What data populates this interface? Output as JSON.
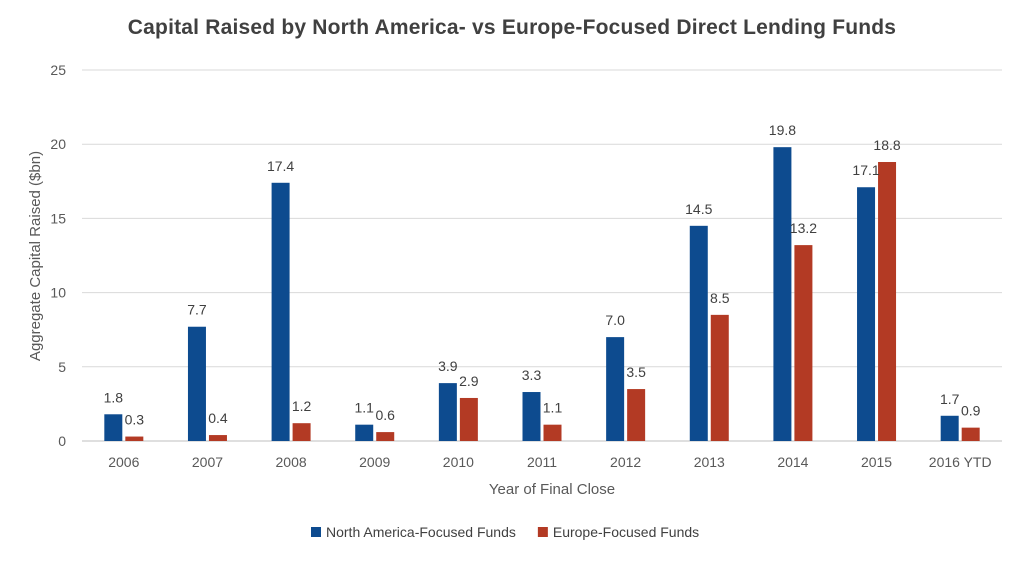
{
  "chart_data": {
    "type": "bar",
    "title": "Capital Raised by North America- vs Europe-Focused Direct Lending Funds",
    "xlabel": "Year of Final Close",
    "ylabel": "Aggregate Capital Raised ($bn)",
    "ylim": [
      0,
      25
    ],
    "yticks": [
      0,
      5,
      10,
      15,
      20,
      25
    ],
    "grid": true,
    "legend_position": "bottom",
    "categories": [
      "2006",
      "2007",
      "2008",
      "2009",
      "2010",
      "2011",
      "2012",
      "2013",
      "2014",
      "2015",
      "2016 YTD"
    ],
    "series": [
      {
        "name": "North America-Focused Funds",
        "color": "#0d4b8f",
        "values": [
          1.8,
          7.7,
          17.4,
          1.1,
          3.9,
          3.3,
          7.0,
          14.5,
          19.8,
          17.1,
          1.7
        ],
        "labels": [
          "1.8",
          "7.7",
          "17.4",
          "1.1",
          "3.9",
          "3.3",
          "7.0",
          "14.5",
          "19.8",
          "17.1",
          "1.7"
        ]
      },
      {
        "name": "Europe-Focused Funds",
        "color": "#b33a24",
        "values": [
          0.3,
          0.4,
          1.2,
          0.6,
          2.9,
          1.1,
          3.5,
          8.5,
          13.2,
          18.8,
          0.9
        ],
        "labels": [
          "0.3",
          "0.4",
          "1.2",
          "0.6",
          "2.9",
          "1.1",
          "3.5",
          "8.5",
          "13.2",
          "18.8",
          "0.9"
        ]
      }
    ]
  }
}
